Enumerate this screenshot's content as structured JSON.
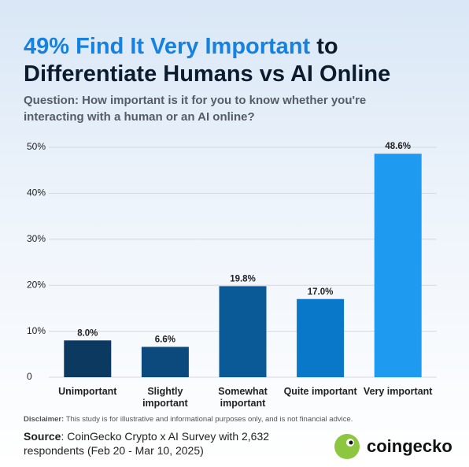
{
  "chart_data": {
    "type": "bar",
    "title_parts": [
      "49% Find It Very Important",
      "to",
      "Differentiate Humans vs AI Online"
    ],
    "subtitle": "Question: How important is it for you to know whether you're interacting with a human or an AI online?",
    "categories": [
      "Unimportant",
      "Slightly\nimportant",
      "Somewhat\nimportant",
      "Quite important",
      "Very important"
    ],
    "values": [
      8.0,
      6.6,
      19.8,
      17.0,
      48.6
    ],
    "value_labels": [
      "8.0%",
      "6.6%",
      "19.8%",
      "17.0%",
      "48.6%"
    ],
    "colors": [
      "#0b3960",
      "#0c4a7e",
      "#0b5a98",
      "#0a78c8",
      "#1e9bf0"
    ],
    "ylim": [
      0,
      50
    ],
    "yticks": [
      0,
      {
        "value": 10,
        "label": "10%"
      },
      {
        "value": 20,
        "label": "20%"
      },
      {
        "value": 30,
        "label": "30%"
      },
      {
        "value": 40,
        "label": "40%"
      },
      {
        "value": 50,
        "label": "50%"
      }
    ],
    "grid": true,
    "disclaimer_label": "Disclaimer:",
    "disclaimer_text": "This study is for illustrative and informational purposes only, and is not financial advice.",
    "source_label": "Source",
    "source_text": ": CoinGecko Crypto x AI Survey with 2,632 respondents (Feb 20 - Mar 10, 2025)",
    "logo_text": "coingecko"
  }
}
